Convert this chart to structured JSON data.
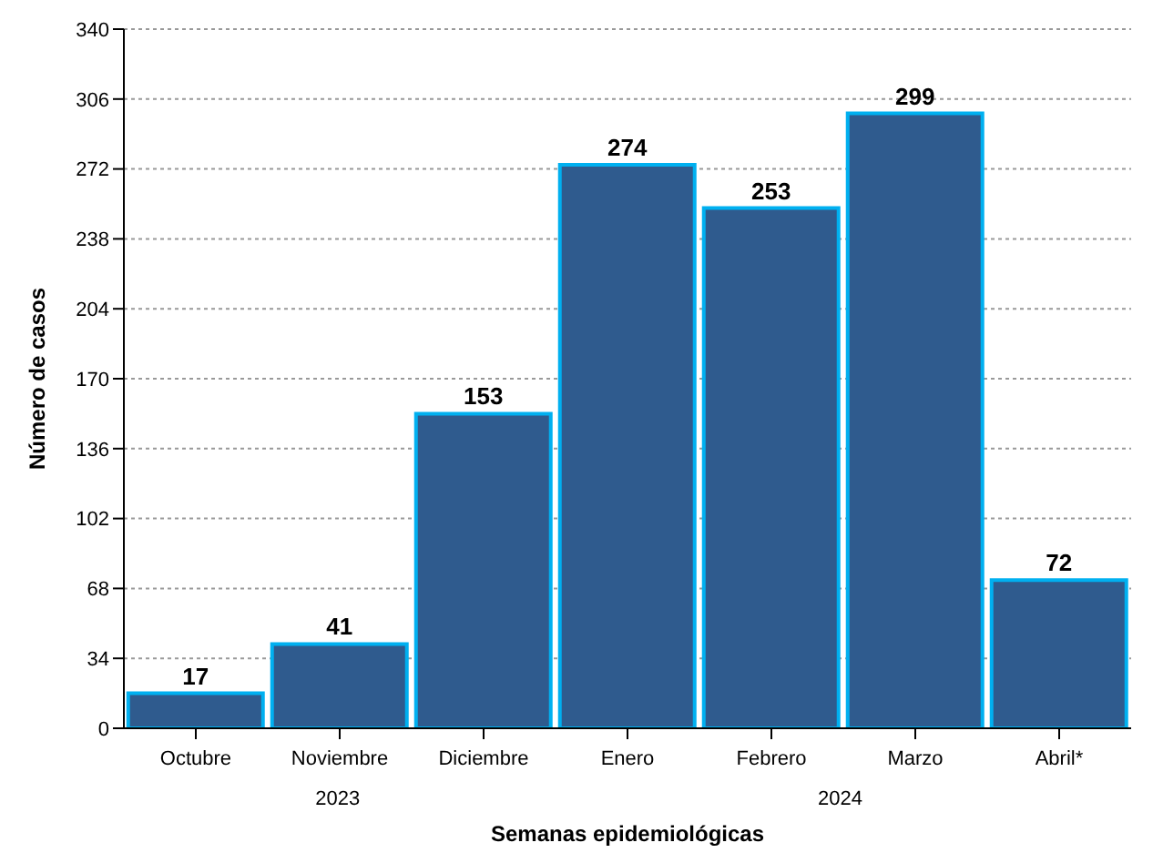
{
  "chart_data": {
    "type": "bar",
    "ylabel": "Número de casos",
    "xlabel": "Semanas epidemiológicas",
    "categories": [
      "Octubre",
      "Noviembre",
      "Diciembre",
      "Enero",
      "Febrero",
      "Marzo",
      "Abril*"
    ],
    "values": [
      17,
      41,
      153,
      274,
      253,
      299,
      72
    ],
    "color": "#2f5b8e",
    "ylim": [
      0,
      340
    ],
    "yticks": [
      0,
      34,
      68,
      102,
      136,
      170,
      204,
      238,
      272,
      306,
      340
    ],
    "grid": "y",
    "data_labels": true,
    "annotations": [
      "2023",
      "2024"
    ]
  }
}
